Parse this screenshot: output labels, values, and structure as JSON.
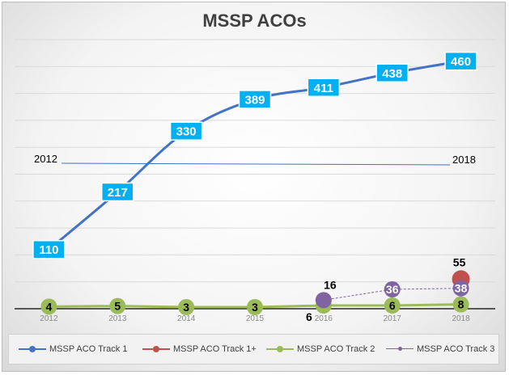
{
  "chart_data": {
    "type": "line",
    "title": "MSSP ACOs",
    "categories": [
      "2012",
      "2013",
      "2014",
      "2015",
      "2016",
      "2017",
      "2018"
    ],
    "ylim": [
      0,
      500
    ],
    "grid": true,
    "legend_position": "bottom",
    "series": [
      {
        "name": "MSSP ACO Track 1",
        "color": "#4472c4",
        "values": [
          110,
          217,
          330,
          389,
          411,
          438,
          460
        ],
        "labels": [
          "110",
          "217",
          "330",
          "389",
          "411",
          "438",
          "460"
        ]
      },
      {
        "name": "MSSP ACO Track 1+",
        "color": "#c0504d",
        "values": [
          null,
          null,
          null,
          null,
          null,
          null,
          55
        ],
        "labels": [
          null,
          null,
          null,
          null,
          null,
          null,
          "55"
        ]
      },
      {
        "name": "MSSP ACO Track 2",
        "color": "#9bbb59",
        "values": [
          4,
          5,
          3,
          3,
          6,
          6,
          8
        ],
        "labels": [
          "4",
          "5",
          "3",
          "3",
          "6",
          "6",
          "8"
        ]
      },
      {
        "name": "MSSP ACO Track 3",
        "color": "#8064a2",
        "values": [
          null,
          null,
          null,
          null,
          16,
          36,
          38
        ],
        "labels": [
          null,
          null,
          null,
          null,
          "16",
          "36",
          "38"
        ]
      }
    ],
    "annotations": {
      "left_year": "2012",
      "right_year": "2018"
    }
  }
}
